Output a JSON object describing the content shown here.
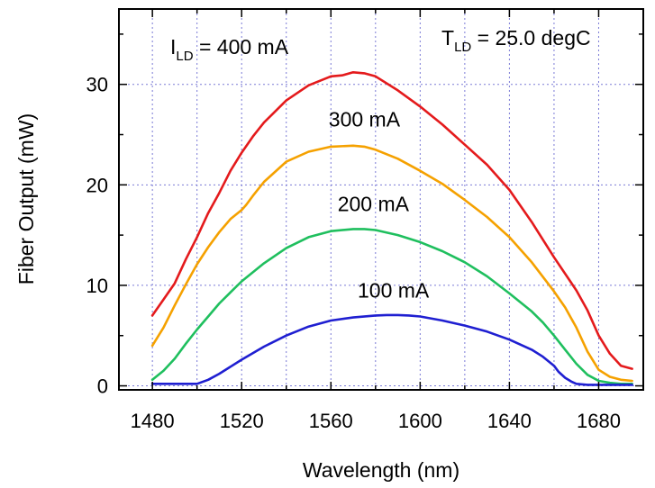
{
  "chart_data": {
    "type": "line",
    "xlabel": "Wavelength (nm)",
    "ylabel": "Fiber Output (mW)",
    "xlim": [
      1465,
      1700
    ],
    "ylim": [
      -0.4,
      37.5
    ],
    "xticks": [
      1480,
      1520,
      1560,
      1600,
      1640,
      1680
    ],
    "yticks": [
      0,
      10,
      20,
      30
    ],
    "grid": true,
    "annotations": {
      "current_main": "I",
      "current_sub": "LD",
      "current_value": " = 400 mA",
      "temp_main": "T",
      "temp_sub": "LD",
      "temp_value": " = 25.0 degC"
    },
    "series": [
      {
        "name": "400 mA",
        "color": "#e41a1c",
        "x": [
          1480,
          1485,
          1490,
          1495,
          1500,
          1505,
          1510,
          1515,
          1520,
          1525,
          1530,
          1540,
          1550,
          1560,
          1565,
          1570,
          1575,
          1580,
          1590,
          1600,
          1610,
          1620,
          1630,
          1640,
          1650,
          1660,
          1670,
          1675,
          1680,
          1685,
          1690,
          1695
        ],
        "y": [
          7.0,
          8.6,
          10.2,
          12.6,
          14.8,
          17.2,
          19.2,
          21.4,
          23.2,
          24.8,
          26.2,
          28.4,
          29.9,
          30.8,
          30.9,
          31.2,
          31.1,
          30.8,
          29.4,
          27.8,
          26.0,
          24.0,
          22.0,
          19.5,
          16.3,
          12.8,
          9.5,
          7.5,
          5.0,
          3.2,
          2.0,
          1.7
        ]
      },
      {
        "name": "300 mA",
        "color": "#f5a100",
        "x": [
          1480,
          1485,
          1490,
          1495,
          1500,
          1505,
          1510,
          1515,
          1520,
          1522,
          1525,
          1530,
          1540,
          1550,
          1560,
          1570,
          1575,
          1580,
          1590,
          1600,
          1610,
          1620,
          1630,
          1640,
          1650,
          1660,
          1665,
          1670,
          1675,
          1680,
          1685,
          1690,
          1695
        ],
        "y": [
          4.0,
          5.8,
          8.0,
          10.1,
          12.1,
          13.8,
          15.3,
          16.6,
          17.5,
          18.0,
          18.9,
          20.3,
          22.3,
          23.3,
          23.8,
          23.9,
          23.8,
          23.5,
          22.6,
          21.4,
          20.1,
          18.5,
          16.8,
          14.8,
          12.3,
          9.4,
          7.8,
          5.8,
          3.4,
          1.6,
          0.9,
          0.6,
          0.5
        ]
      },
      {
        "name": "200 mA",
        "color": "#1fbf5e",
        "x": [
          1480,
          1485,
          1490,
          1495,
          1500,
          1505,
          1510,
          1515,
          1520,
          1530,
          1540,
          1550,
          1560,
          1570,
          1575,
          1580,
          1590,
          1600,
          1610,
          1620,
          1630,
          1640,
          1650,
          1655,
          1660,
          1665,
          1670,
          1675,
          1680,
          1685,
          1690,
          1695
        ],
        "y": [
          0.6,
          1.5,
          2.7,
          4.2,
          5.6,
          6.9,
          8.2,
          9.3,
          10.4,
          12.2,
          13.7,
          14.8,
          15.4,
          15.6,
          15.6,
          15.5,
          15.0,
          14.3,
          13.4,
          12.3,
          10.9,
          9.2,
          7.4,
          6.3,
          5.0,
          3.6,
          2.2,
          1.1,
          0.5,
          0.3,
          0.2,
          0.2
        ]
      },
      {
        "name": "100 mA",
        "color": "#1f1fd1",
        "x": [
          1480,
          1490,
          1500,
          1505,
          1510,
          1515,
          1520,
          1530,
          1540,
          1550,
          1560,
          1570,
          1580,
          1585,
          1590,
          1595,
          1600,
          1610,
          1620,
          1630,
          1640,
          1650,
          1655,
          1660,
          1662,
          1665,
          1668,
          1670,
          1675,
          1680,
          1690,
          1695
        ],
        "y": [
          0.2,
          0.2,
          0.2,
          0.6,
          1.2,
          1.9,
          2.6,
          3.9,
          5.0,
          5.9,
          6.5,
          6.8,
          7.0,
          7.05,
          7.05,
          7.0,
          6.9,
          6.5,
          6.0,
          5.4,
          4.6,
          3.6,
          2.9,
          2.0,
          1.4,
          0.8,
          0.4,
          0.2,
          0.1,
          0.1,
          0.1,
          0.1
        ]
      }
    ],
    "series_labels": [
      {
        "text": "300 mA",
        "x": 1575,
        "y": 25.8
      },
      {
        "text": "200 mA",
        "x": 1579,
        "y": 17.4
      },
      {
        "text": "100 mA",
        "x": 1588,
        "y": 8.8
      }
    ]
  }
}
